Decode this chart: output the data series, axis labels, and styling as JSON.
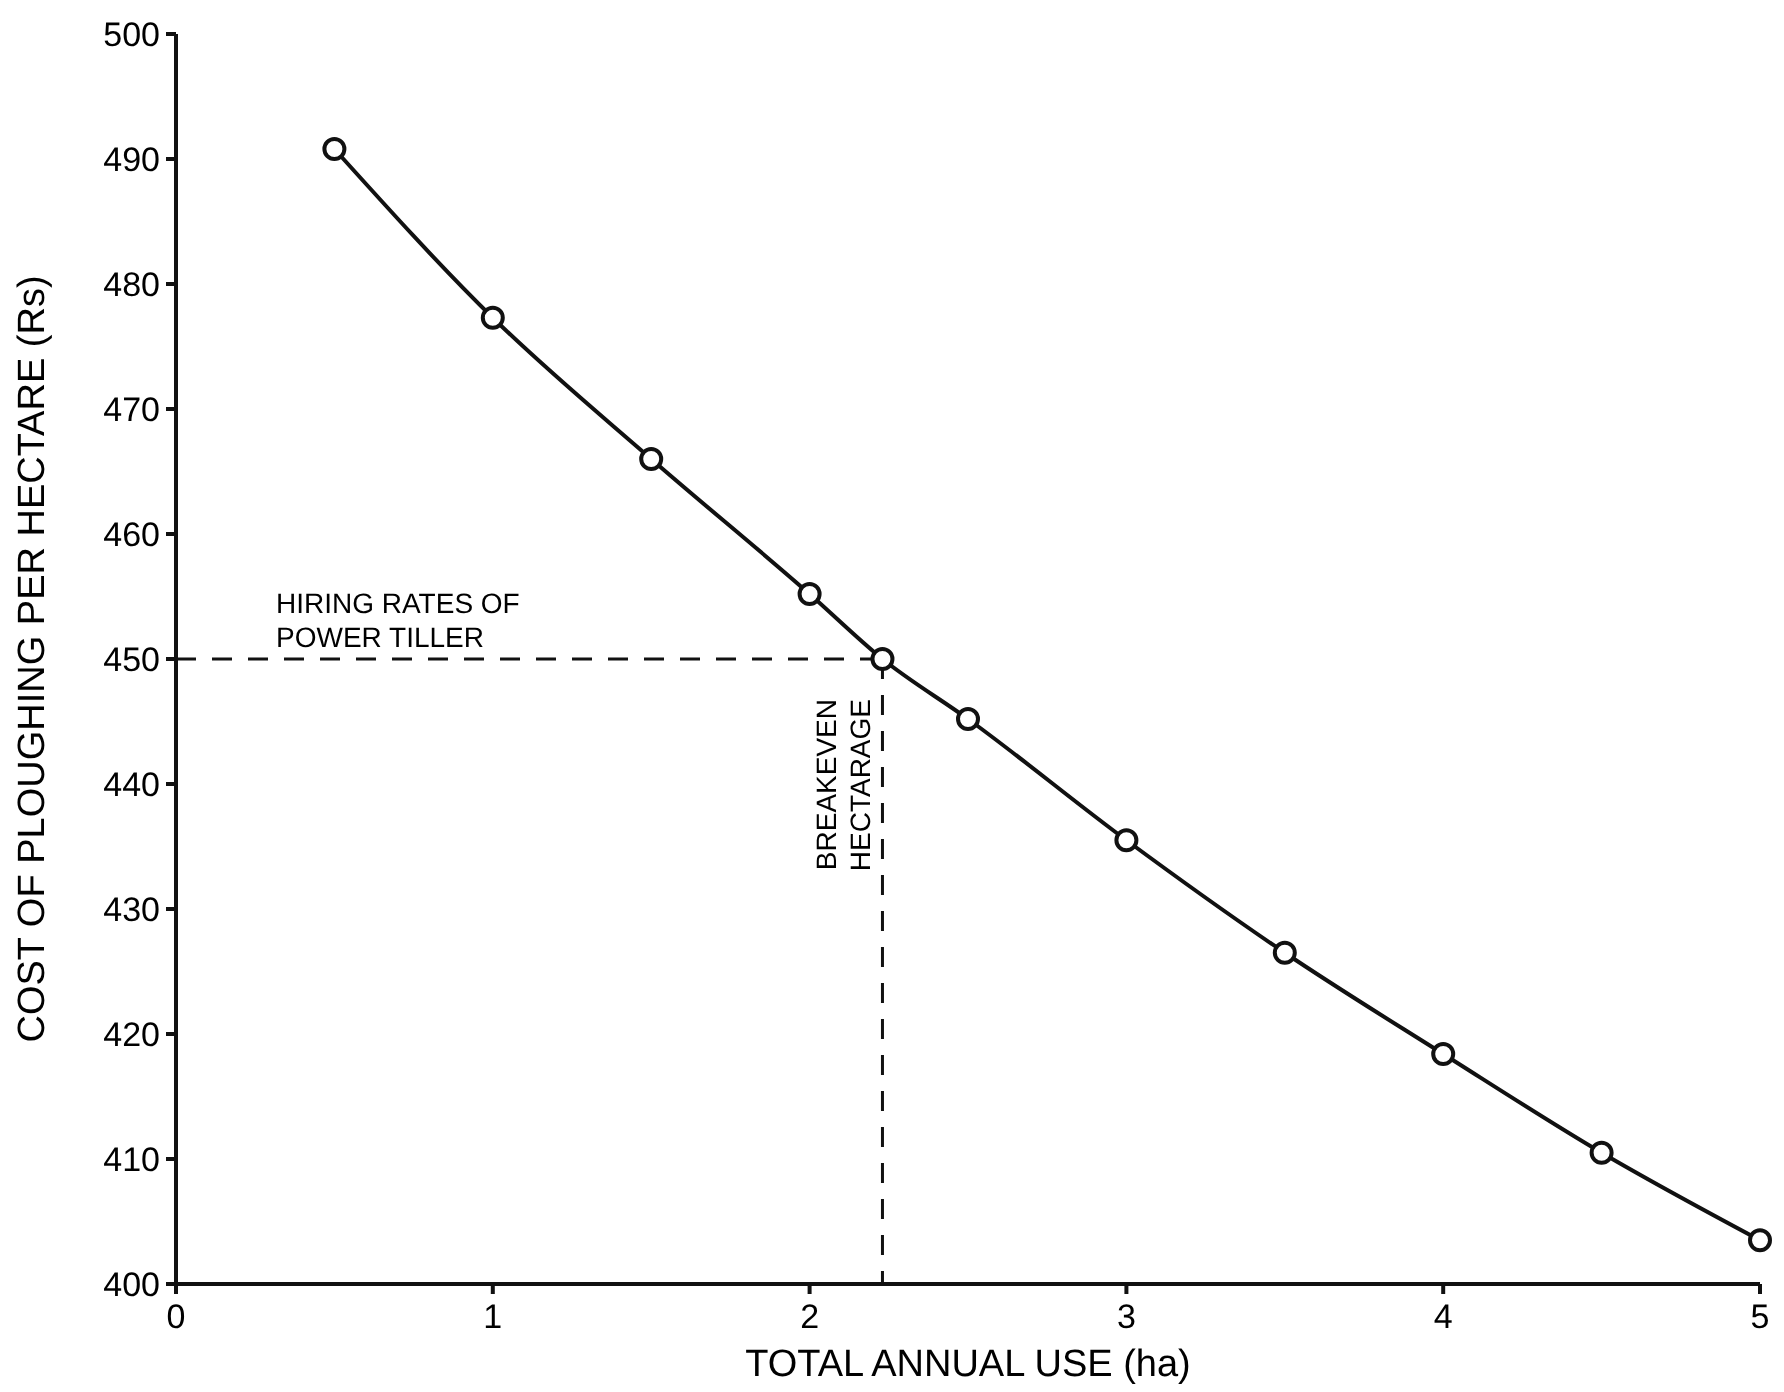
{
  "chart_data": {
    "type": "line",
    "xlabel": "TOTAL ANNUAL USE (ha)",
    "ylabel": "COST OF PLOUGHING PER HECTARE (Rs)",
    "x": [
      0.5,
      1,
      1.5,
      2,
      2.23,
      2.5,
      3,
      3.5,
      4,
      4.5,
      5
    ],
    "series": [
      {
        "color": "#111111",
        "values": [
          490.8,
          477.3,
          466,
          455.2,
          450,
          445.2,
          435.5,
          426.5,
          418.4,
          410.5,
          403.5
        ]
      }
    ],
    "xlim": [
      0,
      5
    ],
    "ylim": [
      400,
      500
    ],
    "xticks": [
      0,
      1,
      2,
      3,
      4,
      5
    ],
    "yticks": [
      400,
      410,
      420,
      430,
      440,
      450,
      460,
      470,
      480,
      490,
      500
    ],
    "grid": false,
    "marker": "circle",
    "line_style": "solid",
    "ref_lines": [
      {
        "axis": "y",
        "value": 450,
        "label": "HIRING RATES OF\nPOWER TILLER",
        "line_style": "dashed"
      },
      {
        "axis": "x",
        "value": 2.23,
        "label": "BREAKEVEN\nHECTARAGE",
        "line_style": "dashed"
      }
    ]
  }
}
